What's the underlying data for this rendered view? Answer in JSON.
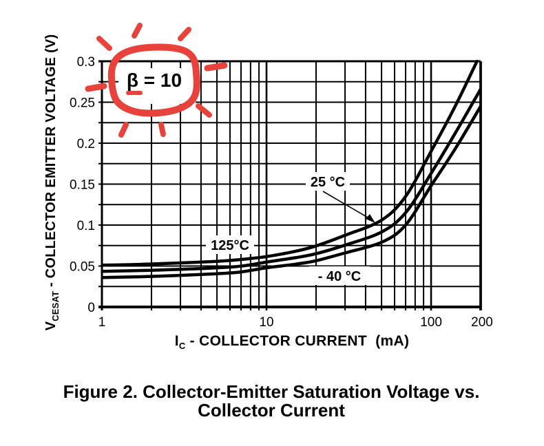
{
  "figure": {
    "caption_line1": "Figure 2. Collector-Emitter Saturation Voltage vs.",
    "caption_line2": "Collector Current"
  },
  "annotations": {
    "beta_label": "β = 10",
    "highlight_color": "#e8423c"
  },
  "chart_data": {
    "type": "line",
    "x_scale": "log",
    "xlim": [
      1,
      200
    ],
    "ylim": [
      0,
      0.3
    ],
    "grid": "on",
    "y_grid_step": 0.025,
    "xlabel_prefix": "I",
    "xlabel_sub": "C",
    "xlabel_rest": " - COLLECTOR CURRENT  (mA)",
    "ylabel_prefix": "V",
    "ylabel_sub": "CESAT",
    "ylabel_rest": " - COLLECTOR EMITTER VOLTAGE (V)",
    "x_ticks": {
      "values": [
        1,
        10,
        100,
        200
      ],
      "labels": [
        "1",
        "10",
        "100",
        "200"
      ]
    },
    "y_ticks": {
      "values": [
        0,
        0.05,
        0.1,
        0.15,
        0.2,
        0.25,
        0.3
      ],
      "labels": [
        "0",
        "0.05",
        "0.1",
        "0.15",
        "0.2",
        "0.25",
        "0.3"
      ]
    },
    "series": [
      {
        "name": "125°C",
        "x": [
          1,
          1.5,
          2,
          3,
          5,
          7,
          10,
          15,
          20,
          30,
          50,
          70,
          100,
          140,
          190
        ],
        "values": [
          0.051,
          0.0517,
          0.0525,
          0.0538,
          0.0557,
          0.058,
          0.0615,
          0.068,
          0.0745,
          0.0875,
          0.106,
          0.135,
          0.19,
          0.245,
          0.3
        ]
      },
      {
        "name": "25 °C",
        "x": [
          1,
          1.5,
          2,
          3,
          5,
          7,
          10,
          15,
          20,
          30,
          50,
          70,
          100,
          140,
          200
        ],
        "values": [
          0.0435,
          0.0442,
          0.0448,
          0.046,
          0.0478,
          0.0498,
          0.0548,
          0.0602,
          0.065,
          0.0755,
          0.0915,
          0.115,
          0.163,
          0.212,
          0.266
        ]
      },
      {
        "name": "- 40 °C",
        "x": [
          1,
          1.5,
          2,
          3,
          5,
          7,
          10,
          15,
          20,
          30,
          50,
          70,
          100,
          140,
          200
        ],
        "values": [
          0.036,
          0.0366,
          0.0373,
          0.0386,
          0.0406,
          0.0428,
          0.0478,
          0.0523,
          0.0565,
          0.066,
          0.079,
          0.1,
          0.148,
          0.193,
          0.245
        ]
      }
    ]
  }
}
